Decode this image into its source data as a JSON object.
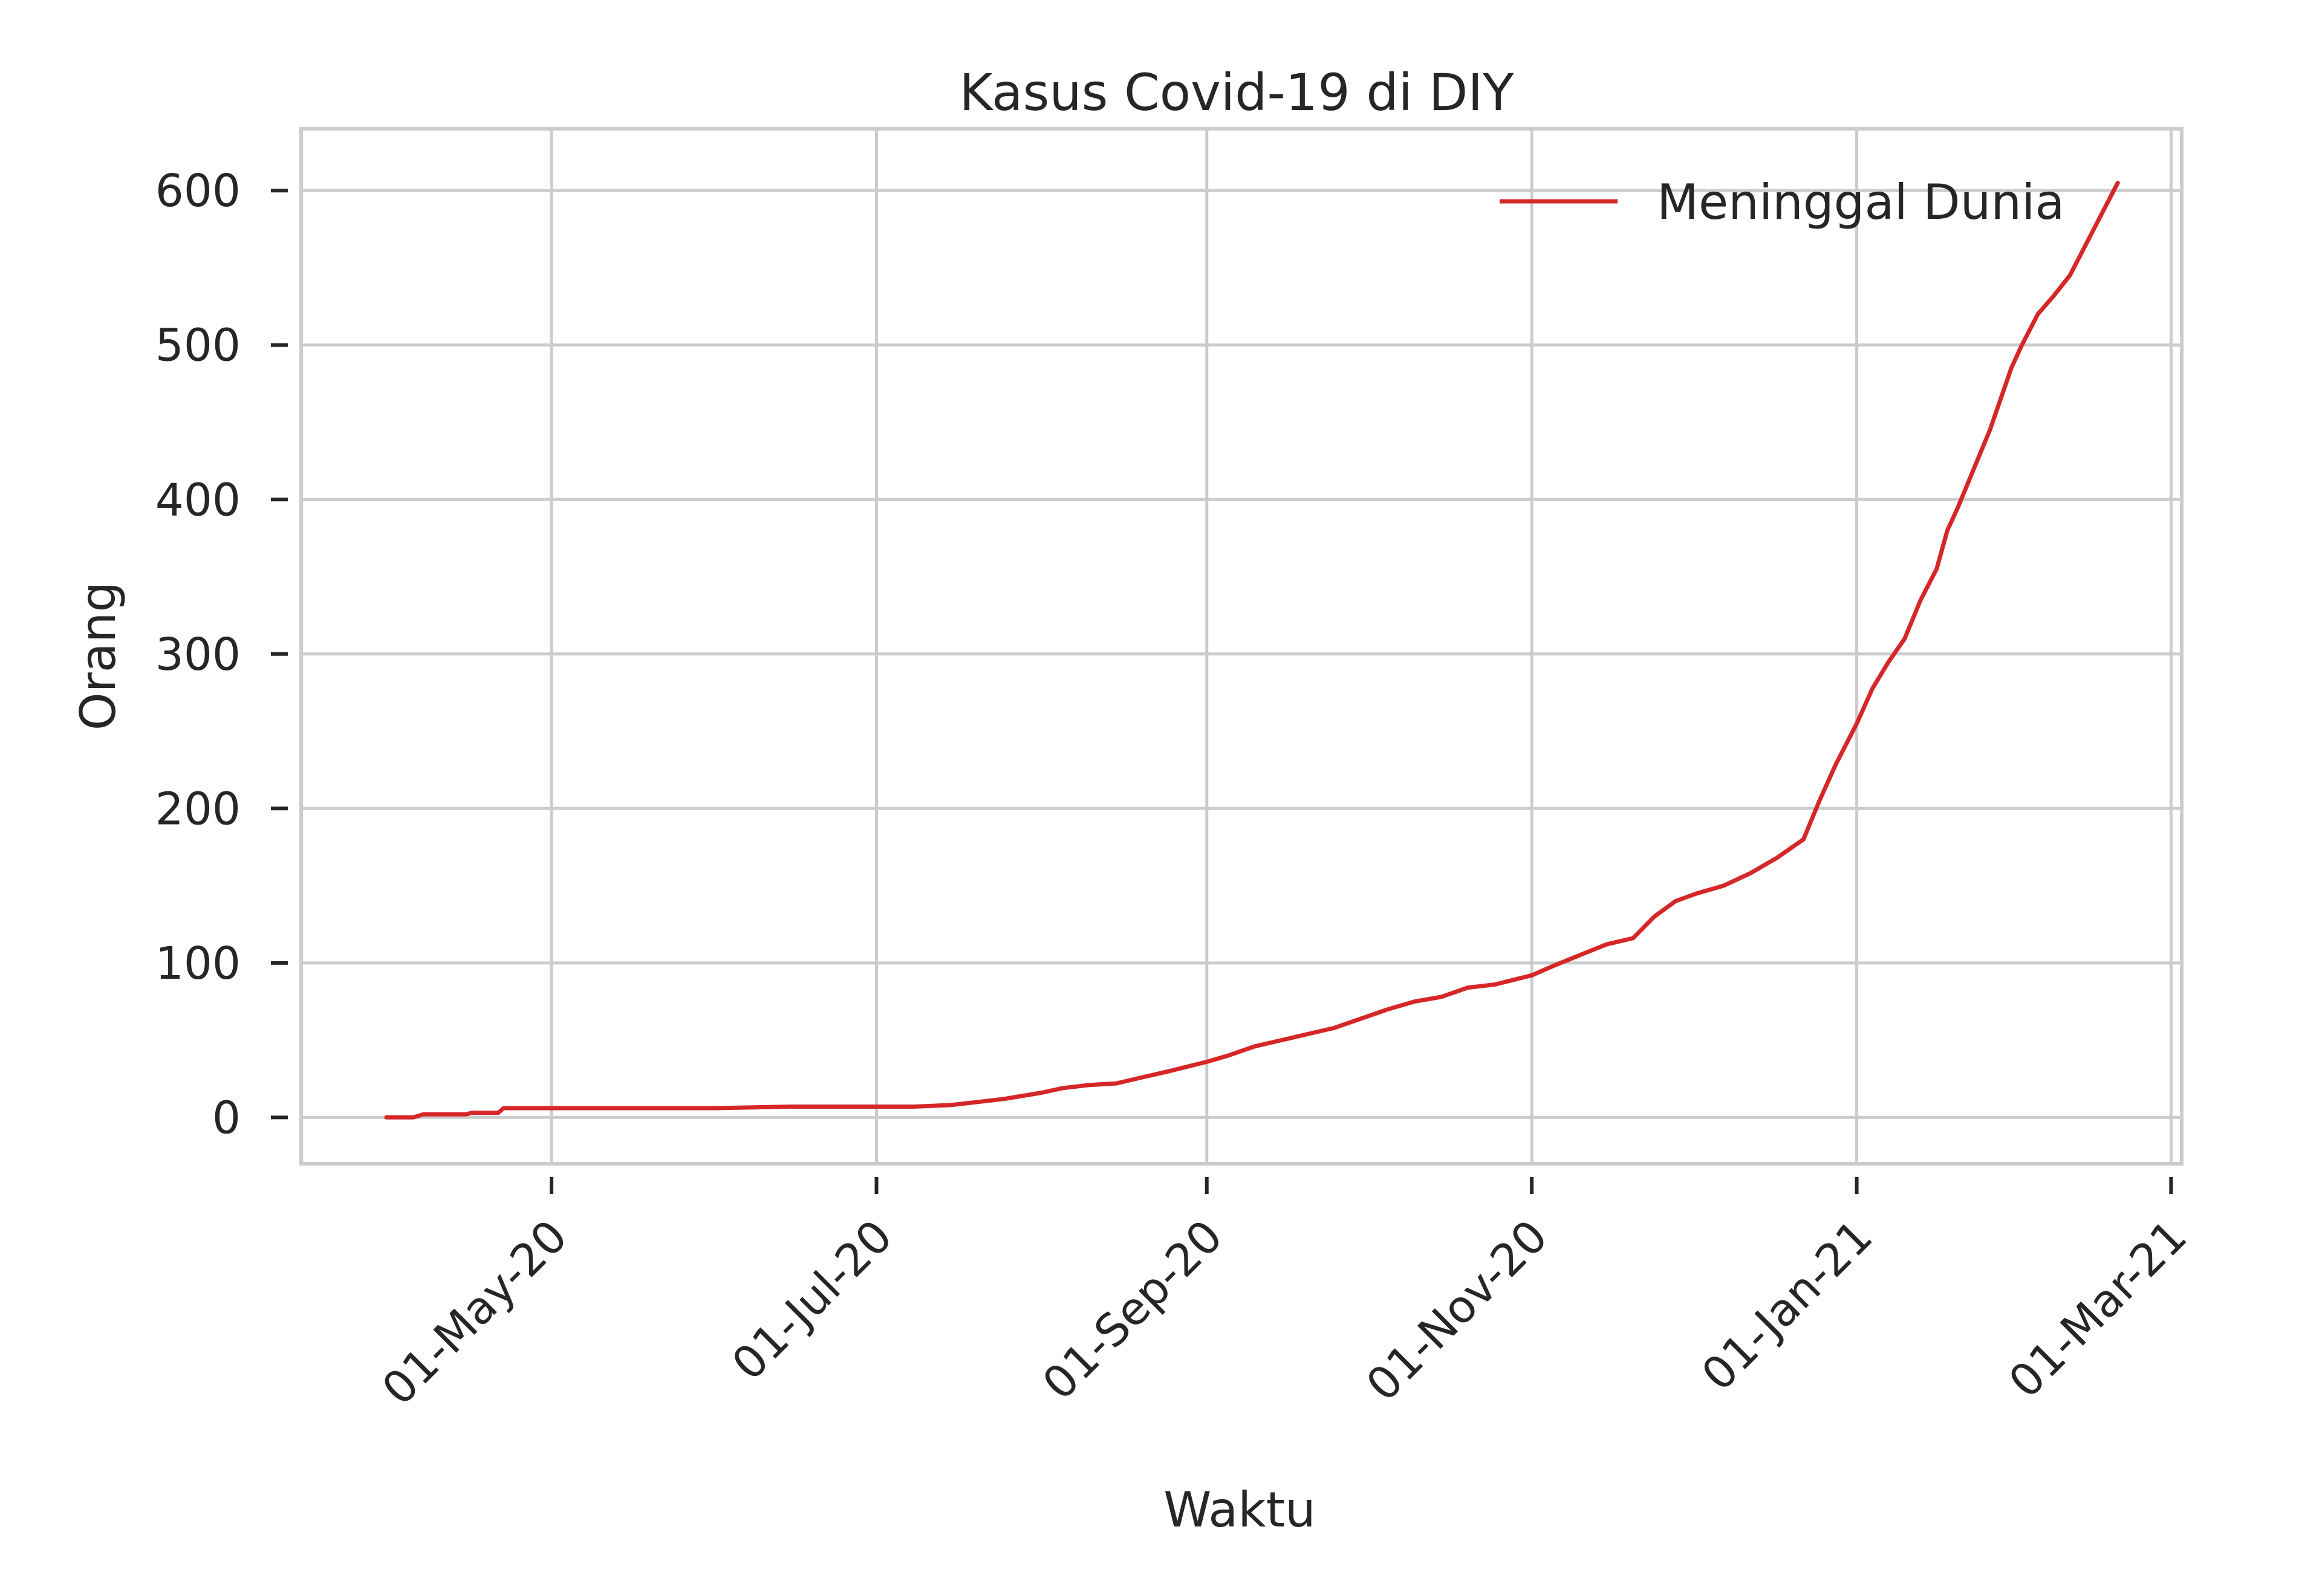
{
  "chart_data": {
    "type": "line",
    "title": "Kasus Covid-19 di DIY",
    "xlabel": "Waktu",
    "ylabel": "Orang",
    "x_axis_type": "date",
    "xlim": [
      "2020-03-15",
      "2021-03-03"
    ],
    "ylim": [
      -30,
      640
    ],
    "yticks": [
      0,
      100,
      200,
      300,
      400,
      500,
      600
    ],
    "xticks": [
      {
        "date": "2020-05-01",
        "label": "01-May-20"
      },
      {
        "date": "2020-07-01",
        "label": "01-Jul-20"
      },
      {
        "date": "2020-09-01",
        "label": "01-Sep-20"
      },
      {
        "date": "2020-11-01",
        "label": "01-Nov-20"
      },
      {
        "date": "2021-01-01",
        "label": "01-Jan-21"
      },
      {
        "date": "2021-03-01",
        "label": "01-Mar-21"
      }
    ],
    "grid": true,
    "legend_position": "top-right",
    "series": [
      {
        "name": "Meninggal Dunia",
        "color": "#d62728",
        "points": [
          [
            "2020-03-31",
            0
          ],
          [
            "2020-04-05",
            0
          ],
          [
            "2020-04-07",
            2
          ],
          [
            "2020-04-15",
            2
          ],
          [
            "2020-04-16",
            3
          ],
          [
            "2020-04-21",
            3
          ],
          [
            "2020-04-22",
            6
          ],
          [
            "2020-05-01",
            6
          ],
          [
            "2020-06-01",
            6
          ],
          [
            "2020-06-15",
            7
          ],
          [
            "2020-07-01",
            7
          ],
          [
            "2020-07-08",
            7
          ],
          [
            "2020-07-15",
            8
          ],
          [
            "2020-07-20",
            10
          ],
          [
            "2020-07-25",
            12
          ],
          [
            "2020-08-01",
            16
          ],
          [
            "2020-08-05",
            19
          ],
          [
            "2020-08-10",
            21
          ],
          [
            "2020-08-15",
            22
          ],
          [
            "2020-08-20",
            26
          ],
          [
            "2020-08-25",
            30
          ],
          [
            "2020-09-01",
            36
          ],
          [
            "2020-09-05",
            40
          ],
          [
            "2020-09-10",
            46
          ],
          [
            "2020-09-15",
            50
          ],
          [
            "2020-09-20",
            54
          ],
          [
            "2020-09-25",
            58
          ],
          [
            "2020-09-30",
            64
          ],
          [
            "2020-10-05",
            70
          ],
          [
            "2020-10-10",
            75
          ],
          [
            "2020-10-15",
            78
          ],
          [
            "2020-10-20",
            84
          ],
          [
            "2020-10-25",
            86
          ],
          [
            "2020-11-01",
            92
          ],
          [
            "2020-11-05",
            98
          ],
          [
            "2020-11-10",
            105
          ],
          [
            "2020-11-15",
            112
          ],
          [
            "2020-11-20",
            116
          ],
          [
            "2020-11-24",
            130
          ],
          [
            "2020-11-28",
            140
          ],
          [
            "2020-12-02",
            145
          ],
          [
            "2020-12-07",
            150
          ],
          [
            "2020-12-12",
            158
          ],
          [
            "2020-12-17",
            168
          ],
          [
            "2020-12-22",
            180
          ],
          [
            "2020-12-25",
            205
          ],
          [
            "2020-12-28",
            228
          ],
          [
            "2021-01-01",
            255
          ],
          [
            "2021-01-04",
            278
          ],
          [
            "2021-01-07",
            295
          ],
          [
            "2021-01-10",
            310
          ],
          [
            "2021-01-13",
            335
          ],
          [
            "2021-01-16",
            355
          ],
          [
            "2021-01-18",
            380
          ],
          [
            "2021-01-20",
            395
          ],
          [
            "2021-01-23",
            420
          ],
          [
            "2021-01-26",
            445
          ],
          [
            "2021-01-28",
            465
          ],
          [
            "2021-01-30",
            485
          ],
          [
            "2021-02-01",
            500
          ],
          [
            "2021-02-04",
            520
          ],
          [
            "2021-02-07",
            532
          ],
          [
            "2021-02-10",
            545
          ],
          [
            "2021-02-13",
            565
          ],
          [
            "2021-02-16",
            585
          ],
          [
            "2021-02-19",
            605
          ]
        ]
      }
    ]
  }
}
